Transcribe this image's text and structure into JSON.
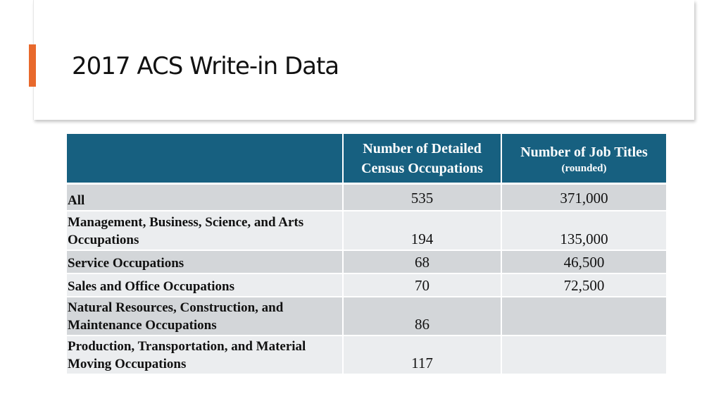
{
  "slide": {
    "title": "2017 ACS Write-in Data",
    "accent_color": "#e8692c",
    "header_color": "#176080"
  },
  "table": {
    "headers": [
      {
        "main": "",
        "sub": ""
      },
      {
        "main": "Number of Detailed Census Occupations",
        "sub": ""
      },
      {
        "main": "Number of Job Titles",
        "sub": "(rounded)"
      }
    ],
    "rows": [
      {
        "label": "All",
        "occupations": "535",
        "job_titles": "371,000"
      },
      {
        "label": "Management,  Business, Science, and Arts Occupations",
        "occupations": "194",
        "job_titles": "135,000"
      },
      {
        "label": "Service Occupations",
        "occupations": "68",
        "job_titles": "46,500"
      },
      {
        "label": "Sales and Office Occupations",
        "occupations": "70",
        "job_titles": "72,500"
      },
      {
        "label": "Natural Resources, Construction, and Maintenance Occupations",
        "occupations": "86",
        "job_titles": ""
      },
      {
        "label": "Production, Transportation, and Material Moving Occupations",
        "occupations": "117",
        "job_titles": ""
      }
    ]
  }
}
